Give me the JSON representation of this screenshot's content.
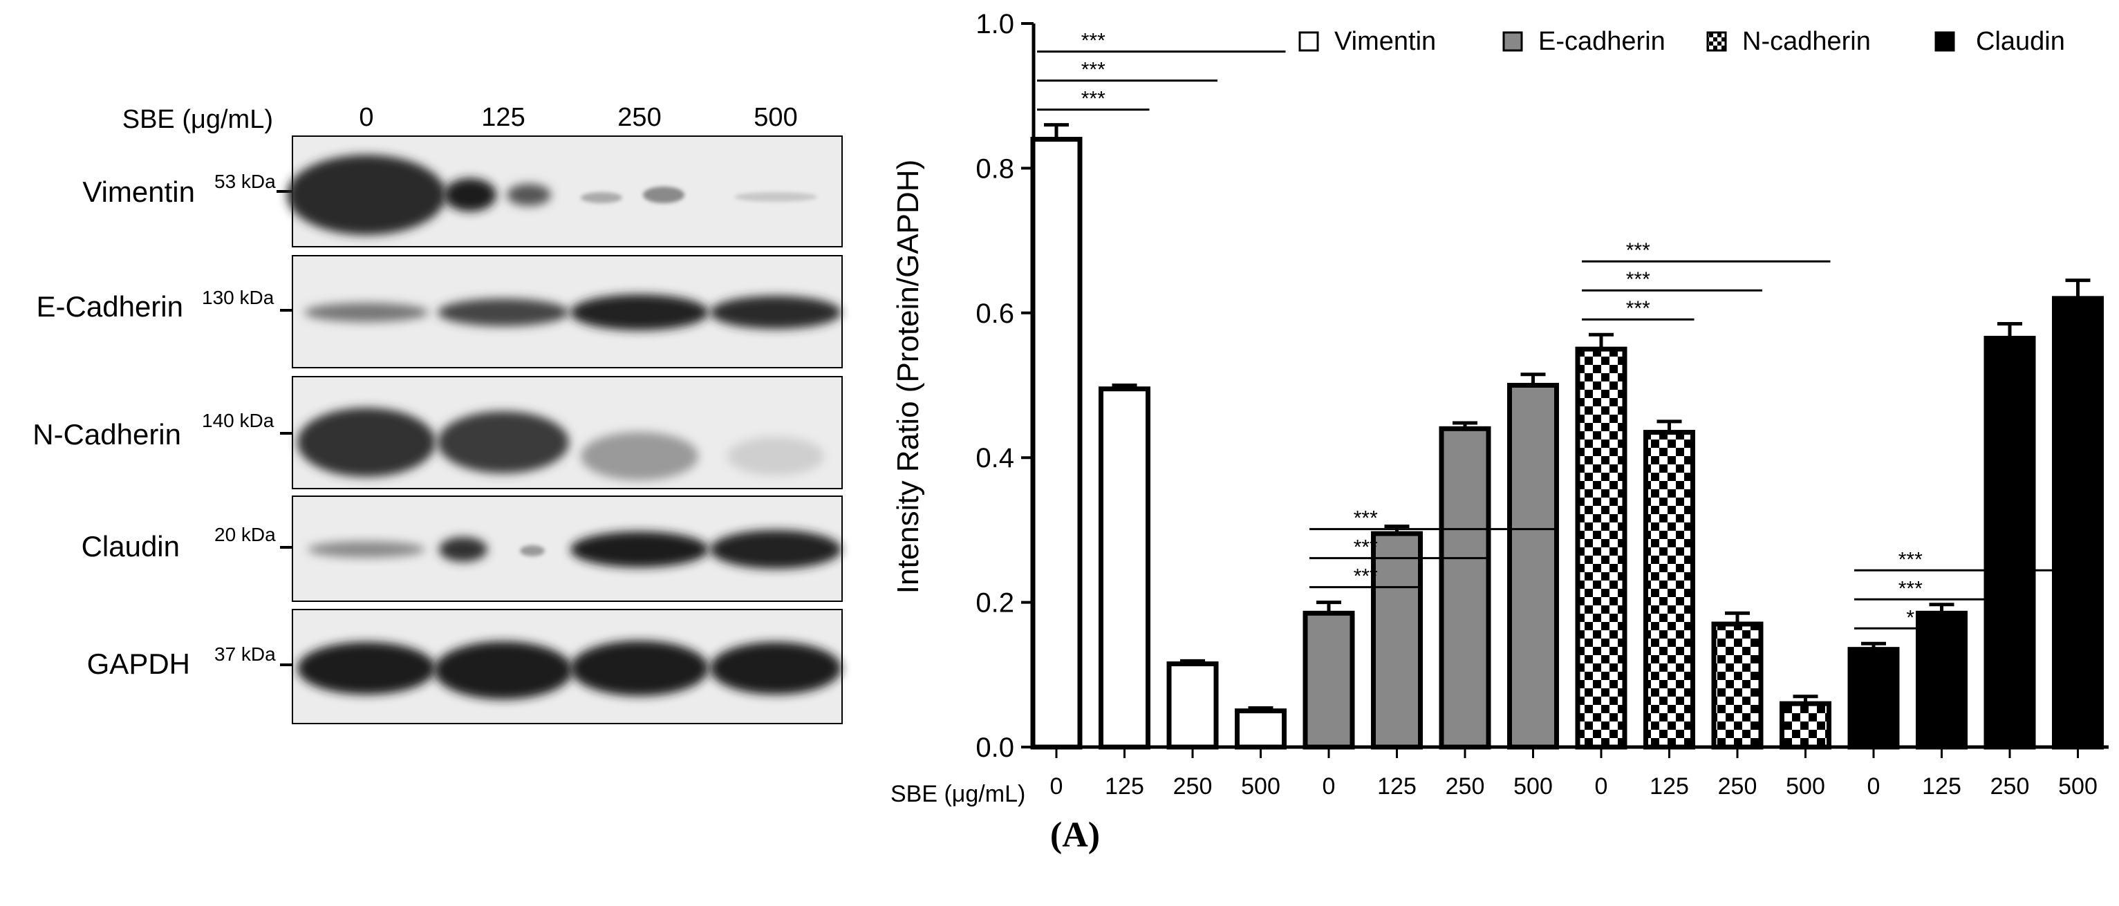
{
  "figure_label": "(A)",
  "western_blot": {
    "header_label": "SBE (μg/mL)",
    "lanes": [
      "0",
      "125",
      "250",
      "500"
    ],
    "rows": [
      {
        "protein": "Vimentin",
        "marker": "53 kDa"
      },
      {
        "protein": "E-Cadherin",
        "marker": "130 kDa"
      },
      {
        "protein": "N-Cadherin",
        "marker": "140 kDa"
      },
      {
        "protein": "Claudin",
        "marker": "20 kDa"
      },
      {
        "protein": "GAPDH",
        "marker": "37 kDa"
      }
    ]
  },
  "chart_data": {
    "type": "bar",
    "ylabel": "Intensity Ratio (Protein/GAPDH)",
    "xlabel": "SBE (μg/mL)",
    "ylim": [
      0,
      1.0
    ],
    "yticks": [
      "0.0",
      "0.2",
      "0.4",
      "0.6",
      "0.8",
      "1.0"
    ],
    "categories": [
      "0",
      "125",
      "250",
      "500"
    ],
    "legend_position": "top",
    "series": [
      {
        "name": "Vimentin",
        "pattern": "white",
        "values": [
          0.84,
          0.495,
          0.115,
          0.05
        ],
        "errors": [
          0.02,
          0.005,
          0.004,
          0.004
        ]
      },
      {
        "name": "E-cadherin",
        "pattern": "gray",
        "values": [
          0.185,
          0.295,
          0.44,
          0.5
        ],
        "errors": [
          0.015,
          0.01,
          0.008,
          0.015
        ]
      },
      {
        "name": "N-cadherin",
        "pattern": "checker",
        "values": [
          0.55,
          0.435,
          0.17,
          0.06
        ],
        "errors": [
          0.02,
          0.015,
          0.015,
          0.01
        ]
      },
      {
        "name": "Claudin",
        "pattern": "black",
        "values": [
          0.135,
          0.185,
          0.565,
          0.62
        ],
        "errors": [
          0.008,
          0.012,
          0.02,
          0.025
        ]
      }
    ],
    "significance": [
      {
        "series": 0,
        "from": 0,
        "to": 1,
        "label": "***"
      },
      {
        "series": 0,
        "from": 0,
        "to": 2,
        "label": "***"
      },
      {
        "series": 0,
        "from": 0,
        "to": 3,
        "label": "***"
      },
      {
        "series": 1,
        "from": 0,
        "to": 1,
        "label": "***"
      },
      {
        "series": 1,
        "from": 0,
        "to": 2,
        "label": "***"
      },
      {
        "series": 1,
        "from": 0,
        "to": 3,
        "label": "***"
      },
      {
        "series": 2,
        "from": 0,
        "to": 1,
        "label": "***"
      },
      {
        "series": 2,
        "from": 0,
        "to": 2,
        "label": "***"
      },
      {
        "series": 2,
        "from": 0,
        "to": 3,
        "label": "***"
      },
      {
        "series": 3,
        "from": 0,
        "to": 1,
        "label": "*"
      },
      {
        "series": 3,
        "from": 0,
        "to": 2,
        "label": "***"
      },
      {
        "series": 3,
        "from": 0,
        "to": 3,
        "label": "***"
      }
    ]
  }
}
